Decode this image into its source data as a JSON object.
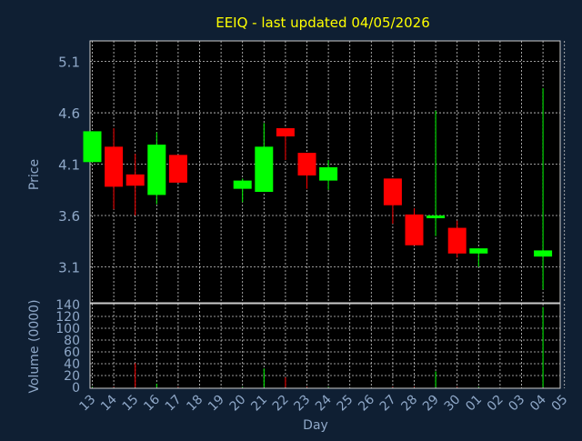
{
  "chart_data": {
    "type": "candlestick",
    "title": "EEIQ - last updated 04/05/2026",
    "xlabel": "Day",
    "price_panel": {
      "ylabel": "Price",
      "yticks": [
        3.1,
        3.6,
        4.1,
        4.6,
        5.1
      ],
      "ylim": [
        2.75,
        5.3
      ],
      "grid": true
    },
    "volume_panel": {
      "ylabel": "Volume (0000)",
      "yticks": [
        0,
        20,
        40,
        60,
        80,
        100,
        120,
        140
      ],
      "ylim": [
        0,
        140
      ],
      "grid": true
    },
    "x_tick_labels": [
      "13",
      "14",
      "15",
      "16",
      "17",
      "18",
      "19",
      "20",
      "21",
      "22",
      "23",
      "24",
      "25",
      "26",
      "27",
      "28",
      "29",
      "30",
      "01",
      "02",
      "03",
      "04",
      "05"
    ],
    "candles": [
      {
        "day": "13",
        "open": 4.12,
        "high": 4.42,
        "low": 4.12,
        "close": 4.42,
        "volume": 1
      },
      {
        "day": "14",
        "open": 4.27,
        "high": 4.45,
        "low": 3.66,
        "close": 3.88,
        "volume": 1
      },
      {
        "day": "15",
        "open": 4.0,
        "high": 4.2,
        "low": 3.6,
        "close": 3.89,
        "volume": 41
      },
      {
        "day": "16",
        "open": 3.8,
        "high": 4.41,
        "low": 3.71,
        "close": 4.29,
        "volume": 6
      },
      {
        "day": "17",
        "open": 4.19,
        "high": 4.19,
        "low": 3.92,
        "close": 3.92,
        "volume": 1
      },
      {
        "day": "20",
        "open": 3.86,
        "high": 3.96,
        "low": 3.73,
        "close": 3.94,
        "volume": 1
      },
      {
        "day": "21",
        "open": 3.83,
        "high": 4.5,
        "low": 3.83,
        "close": 4.27,
        "volume": 32
      },
      {
        "day": "22",
        "open": 4.45,
        "high": 4.45,
        "low": 4.14,
        "close": 4.37,
        "volume": 17
      },
      {
        "day": "23",
        "open": 4.21,
        "high": 4.21,
        "low": 3.86,
        "close": 3.99,
        "volume": 1
      },
      {
        "day": "24",
        "open": 3.94,
        "high": 4.14,
        "low": 3.85,
        "close": 4.07,
        "volume": 1
      },
      {
        "day": "27",
        "open": 3.96,
        "high": 3.96,
        "low": 3.52,
        "close": 3.7,
        "volume": 1
      },
      {
        "day": "28",
        "open": 3.61,
        "high": 3.67,
        "low": 3.31,
        "close": 3.31,
        "volume": 1
      },
      {
        "day": "29",
        "open": 3.58,
        "high": 4.62,
        "low": 3.4,
        "close": 3.6,
        "volume": 27
      },
      {
        "day": "30",
        "open": 3.48,
        "high": 3.55,
        "low": 3.19,
        "close": 3.23,
        "volume": 1
      },
      {
        "day": "01",
        "open": 3.23,
        "high": 3.28,
        "low": 3.1,
        "close": 3.28,
        "volume": 1
      },
      {
        "day": "04",
        "open": 3.2,
        "high": 4.84,
        "low": 2.88,
        "close": 3.26,
        "volume": 136
      }
    ],
    "colors": {
      "background": "#0f1f33",
      "plot_background": "#000000",
      "up": "#00ff00",
      "down": "#ff0000",
      "grid": "#cccccc",
      "axis_text": "#8fa8c8",
      "title": "#ffff00"
    }
  }
}
